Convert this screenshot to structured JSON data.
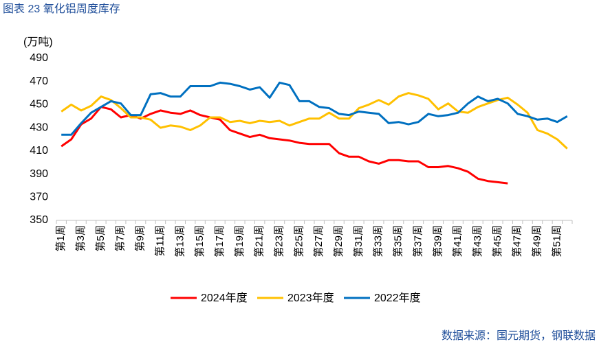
{
  "chart_data": {
    "type": "line",
    "title": "图表 23  氧化铝周度库存",
    "y_label": "(万吨)",
    "source": "数据来源：国元期货，钢联数据",
    "categories": [
      "第1周",
      null,
      "第3周",
      null,
      "第5周",
      null,
      "第7周",
      null,
      "第9周",
      null,
      "第11周",
      null,
      "第13周",
      null,
      "第15周",
      null,
      "第17周",
      null,
      "第19周",
      null,
      "第21周",
      null,
      "第23周",
      null,
      "第25周",
      null,
      "第27周",
      null,
      "第29周",
      null,
      "第31周",
      null,
      "第33周",
      null,
      "第35周",
      null,
      "第37周",
      null,
      "第39周",
      null,
      "第41周",
      null,
      "第43周",
      null,
      "第45周",
      null,
      "第47周",
      null,
      "第49周",
      null,
      "第51周",
      null
    ],
    "series": [
      {
        "name": "2024年度",
        "color": "#ff0000",
        "values": [
          414,
          420,
          433,
          438,
          448,
          446,
          439,
          441,
          438,
          442,
          445,
          443,
          442,
          445,
          441,
          439,
          437,
          428,
          425,
          422,
          424,
          421,
          420,
          419,
          417,
          416,
          416,
          416,
          408,
          405,
          405,
          401,
          399,
          402,
          402,
          401,
          401,
          396,
          396,
          397,
          395,
          392,
          386,
          384,
          383,
          382,
          null,
          null,
          null,
          null,
          null,
          null
        ]
      },
      {
        "name": "2023年度",
        "color": "#ffc000",
        "values": [
          444,
          450,
          445,
          449,
          457,
          454,
          447,
          439,
          439,
          437,
          430,
          432,
          431,
          428,
          432,
          439,
          439,
          435,
          436,
          434,
          436,
          435,
          436,
          432,
          435,
          438,
          438,
          443,
          438,
          438,
          447,
          450,
          454,
          450,
          457,
          460,
          458,
          455,
          446,
          451,
          444,
          443,
          448,
          451,
          454,
          456,
          450,
          443,
          428,
          425,
          420,
          412
        ]
      },
      {
        "name": "2022年度",
        "color": "#0070c0",
        "values": [
          424,
          424,
          434,
          443,
          448,
          453,
          451,
          441,
          441,
          459,
          460,
          457,
          457,
          466,
          466,
          466,
          469,
          468,
          466,
          463,
          465,
          456,
          469,
          467,
          453,
          453,
          448,
          447,
          442,
          441,
          444,
          443,
          442,
          434,
          435,
          433,
          435,
          442,
          440,
          441,
          443,
          451,
          457,
          453,
          455,
          451,
          442,
          440,
          437,
          438,
          435,
          440
        ]
      }
    ],
    "ylim": [
      350,
      490
    ],
    "yticks": [
      350,
      370,
      390,
      410,
      430,
      450,
      470,
      490
    ],
    "grid": false
  }
}
